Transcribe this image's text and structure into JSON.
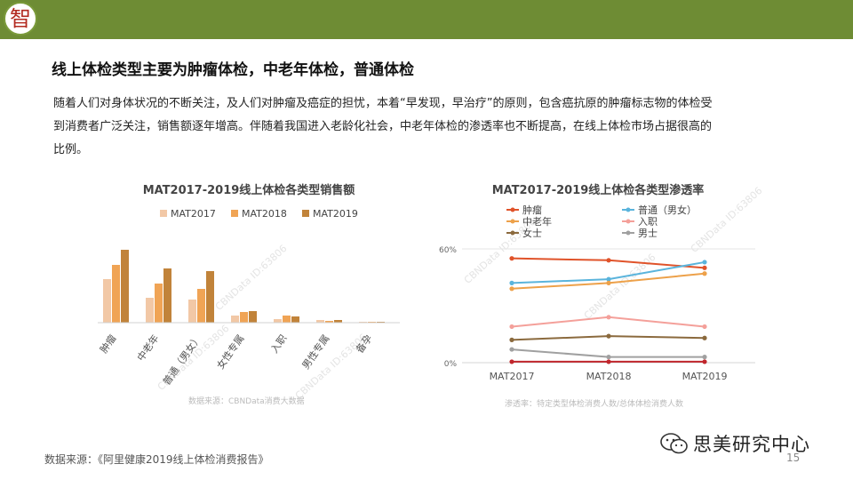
{
  "header": {
    "logo_char": "智"
  },
  "title": "线上体检类型主要为肿瘤体检，中老年体检，普通体检",
  "intro": "随着人们对身体状况的不断关注，及人们对肿瘤及癌症的担忧，本着“早发现，早治疗”的原则，包含癌抗原的肿瘤标志物的体检受到消费者广泛关注，销售额逐年增高。伴随着我国进入老龄化社会，中老年体检的渗透率也不断提高，在线上体检市场占据很高的比例。",
  "source": "数据来源：《阿里健康2019线上体检消费报告》",
  "page_number": "15",
  "brand": "思美研究中心",
  "watermark": "CBNData ID:63806",
  "colors": {
    "header": "#6e8c34",
    "mat2017": "#f2c8a6",
    "mat2018": "#f0a455",
    "mat2019": "#c1833a"
  },
  "chart_data": [
    {
      "type": "bar",
      "title": "MAT2017-2019线上体检各类型销售额",
      "categories": [
        "肿瘤",
        "中老年",
        "普通（男女）",
        "女性专属",
        "入职",
        "男性专属",
        "备孕"
      ],
      "series": [
        {
          "name": "MAT2017",
          "color": "#f2c8a6",
          "values": [
            49,
            28,
            26,
            8,
            4,
            3,
            1
          ]
        },
        {
          "name": "MAT2018",
          "color": "#f0a455",
          "values": [
            65,
            44,
            38,
            12,
            8,
            2,
            1
          ]
        },
        {
          "name": "MAT2019",
          "color": "#c1833a",
          "values": [
            82,
            61,
            58,
            13,
            7,
            3,
            1
          ]
        }
      ],
      "ylim": [
        0,
        100
      ],
      "footnote": "数据来源：CBNData消费大数据",
      "legend": "top"
    },
    {
      "type": "line",
      "title": "MAT2017-2019线上体检各类型渗透率",
      "x": [
        "MAT2017",
        "MAT2018",
        "MAT2019"
      ],
      "yticks": [
        "0%",
        "60%"
      ],
      "ylim": [
        0,
        60
      ],
      "series": [
        {
          "name": "肿瘤",
          "color": "#e0532a",
          "values": [
            55,
            54,
            50
          ]
        },
        {
          "name": "普通（男女）",
          "color": "#5ab4dc",
          "values": [
            42,
            44,
            53
          ]
        },
        {
          "name": "中老年",
          "color": "#eda14a",
          "values": [
            39,
            42,
            47
          ]
        },
        {
          "name": "入职",
          "color": "#f4a09a",
          "values": [
            19,
            24,
            19
          ]
        },
        {
          "name": "女士",
          "color": "#8b6a3e",
          "values": [
            12,
            14,
            13
          ]
        },
        {
          "name": "男士",
          "color": "#a0a0a0",
          "values": [
            7,
            3,
            3
          ]
        },
        {
          "name": "",
          "color": "#c0262c",
          "values": [
            0.5,
            0.5,
            0.5
          ]
        }
      ],
      "footnote": "渗透率：特定类型体检消费人数/总体体检消费人数",
      "legend": "top-left"
    }
  ]
}
